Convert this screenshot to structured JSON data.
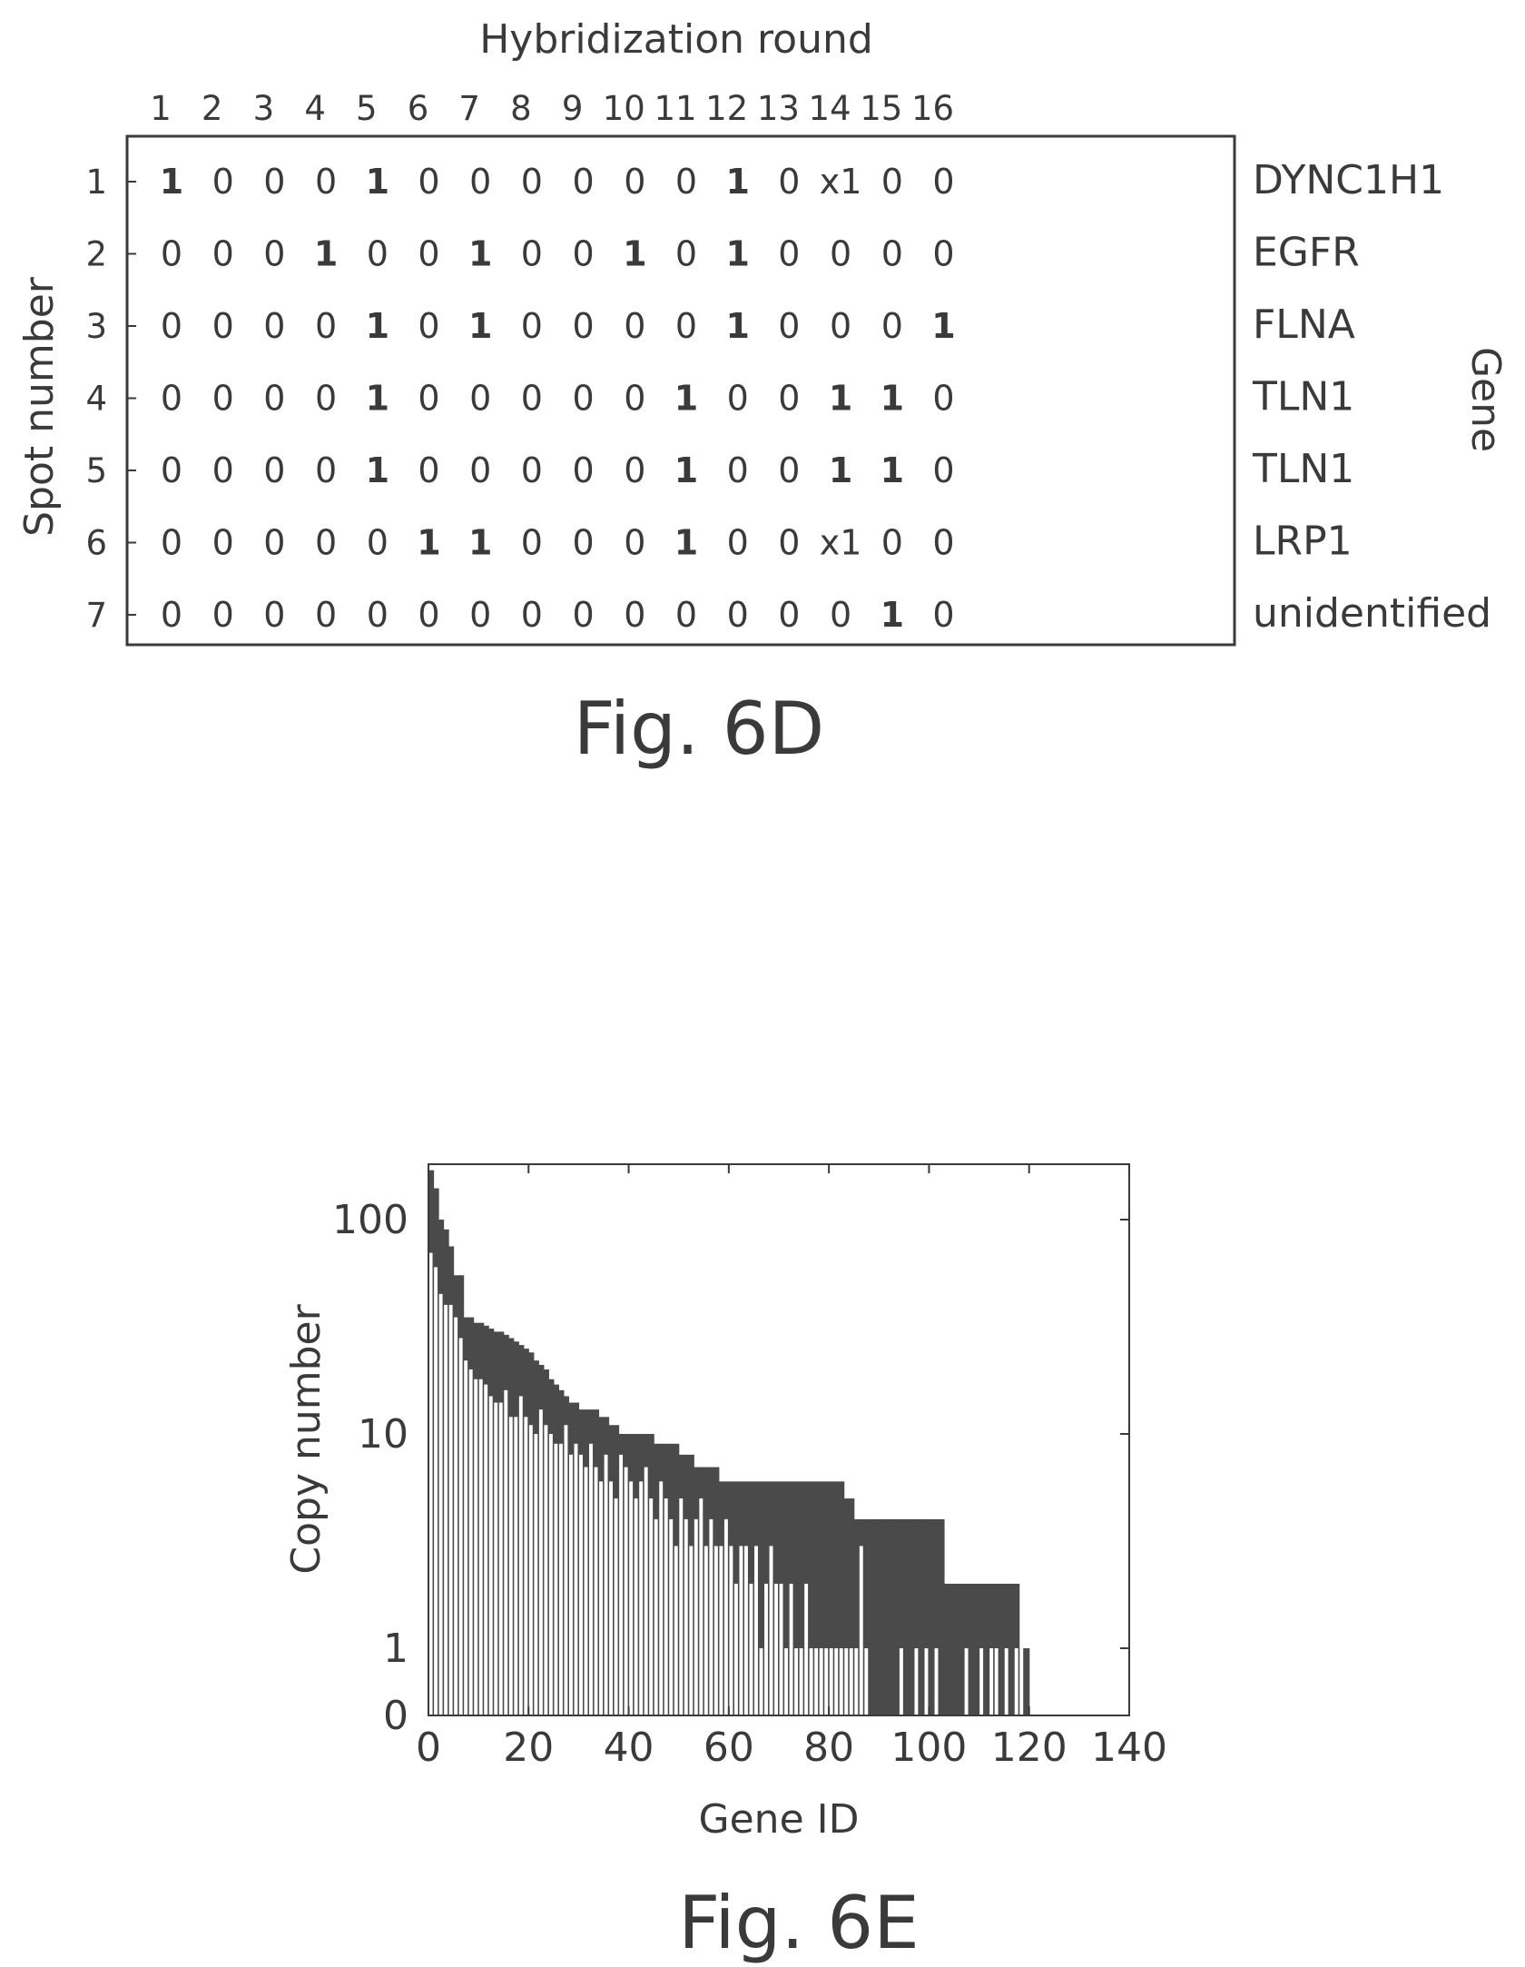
{
  "figure_6d": {
    "title": "Hybridization round",
    "y_label": "Spot number",
    "right_label": "Gene",
    "caption": "Fig. 6D",
    "rounds": [
      "1",
      "2",
      "3",
      "4",
      "5",
      "6",
      "7",
      "8",
      "9",
      "10",
      "11",
      "12",
      "13",
      "14",
      "15",
      "16"
    ],
    "spots": [
      "1",
      "2",
      "3",
      "4",
      "5",
      "6",
      "7"
    ],
    "genes": [
      "DYNC1H1",
      "EGFR",
      "FLNA",
      "TLN1",
      "TLN1",
      "LRP1",
      "unidentified"
    ],
    "matrix": [
      [
        "1",
        "0",
        "0",
        "0",
        "1",
        "0",
        "0",
        "0",
        "0",
        "0",
        "0",
        "1",
        "0",
        "x1",
        "0",
        "0"
      ],
      [
        "0",
        "0",
        "0",
        "1",
        "0",
        "0",
        "1",
        "0",
        "0",
        "1",
        "0",
        "1",
        "0",
        "0",
        "0",
        "0"
      ],
      [
        "0",
        "0",
        "0",
        "0",
        "1",
        "0",
        "1",
        "0",
        "0",
        "0",
        "0",
        "1",
        "0",
        "0",
        "0",
        "1"
      ],
      [
        "0",
        "0",
        "0",
        "0",
        "1",
        "0",
        "0",
        "0",
        "0",
        "0",
        "1",
        "0",
        "0",
        "1",
        "1",
        "0"
      ],
      [
        "0",
        "0",
        "0",
        "0",
        "1",
        "0",
        "0",
        "0",
        "0",
        "0",
        "1",
        "0",
        "0",
        "1",
        "1",
        "0"
      ],
      [
        "0",
        "0",
        "0",
        "0",
        "0",
        "1",
        "1",
        "0",
        "0",
        "0",
        "1",
        "0",
        "0",
        "x1",
        "0",
        "0"
      ],
      [
        "0",
        "0",
        "0",
        "0",
        "0",
        "0",
        "0",
        "0",
        "0",
        "0",
        "0",
        "0",
        "0",
        "0",
        "1",
        "0"
      ]
    ]
  },
  "chart_data": {
    "type": "bar",
    "caption": "Fig. 6E",
    "xlabel": "Gene ID",
    "ylabel": "Copy number",
    "xlim": [
      0,
      140
    ],
    "x_ticks": [
      "0",
      "20",
      "40",
      "60",
      "80",
      "100",
      "120",
      "140"
    ],
    "y_ticks": [
      "0",
      "1",
      "10",
      "100"
    ],
    "y_scale": "log (with 0 baseline)",
    "colors": {
      "total": "#4a4a4a",
      "identified": "#ffffff"
    },
    "series": [
      {
        "name": "",
        "values": [
          170,
          140,
          100,
          90,
          75,
          55,
          55,
          35,
          35,
          33,
          33,
          32,
          31,
          30,
          30,
          29,
          28,
          27,
          26,
          25,
          24,
          22,
          21,
          20,
          18,
          17,
          16,
          15,
          14,
          14,
          13,
          13,
          13,
          13,
          12,
          12,
          11,
          11,
          10,
          10,
          10,
          10,
          10,
          10,
          10,
          9,
          9,
          9,
          9,
          9,
          8,
          8,
          8,
          7,
          7,
          7,
          7,
          7,
          6,
          6,
          6,
          6,
          6,
          6,
          6,
          6,
          6,
          6,
          6,
          6,
          6,
          6,
          6,
          6,
          6,
          6,
          6,
          6,
          6,
          6,
          6,
          6,
          6,
          5,
          5,
          4,
          4,
          4,
          4,
          4,
          4,
          4,
          4,
          4,
          4,
          4,
          4,
          4,
          4,
          4,
          4,
          4,
          4,
          2,
          2,
          2,
          2,
          2,
          2,
          2,
          2,
          2,
          2,
          2,
          2,
          2,
          2,
          2,
          1,
          1
        ]
      },
      {
        "name": "",
        "values": [
          70,
          60,
          45,
          40,
          40,
          35,
          28,
          22,
          20,
          18,
          18,
          17,
          15,
          14,
          14,
          16,
          12,
          12,
          15,
          12,
          11,
          10,
          13,
          11,
          10,
          9,
          9,
          11,
          8,
          9,
          8,
          7,
          9,
          7,
          6,
          8,
          6,
          5,
          8,
          7,
          6,
          5,
          6,
          7,
          5,
          4,
          6,
          5,
          4,
          3,
          5,
          4,
          3,
          4,
          5,
          3,
          4,
          3,
          3,
          4,
          3,
          2,
          3,
          3,
          2,
          3,
          1,
          2,
          3,
          2,
          2,
          1,
          2,
          1,
          1,
          2,
          1,
          1,
          1,
          1,
          1,
          1,
          1,
          1,
          1,
          1,
          3,
          1,
          0,
          0,
          0,
          0,
          0,
          0,
          1,
          0,
          0,
          1,
          0,
          1,
          0,
          1,
          0,
          0,
          0,
          0,
          0,
          1,
          0,
          0,
          1,
          0,
          1,
          1,
          0,
          1,
          0,
          1,
          1
        ]
      }
    ]
  }
}
